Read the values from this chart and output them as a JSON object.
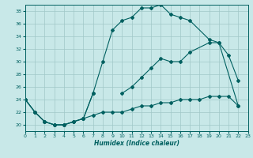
{
  "xlabel": "Humidex (Indice chaleur)",
  "xlim": [
    0,
    23
  ],
  "ylim": [
    19,
    39
  ],
  "yticks": [
    20,
    22,
    24,
    26,
    28,
    30,
    32,
    34,
    36,
    38
  ],
  "xticks": [
    0,
    1,
    2,
    3,
    4,
    5,
    6,
    7,
    8,
    9,
    10,
    11,
    12,
    13,
    14,
    15,
    16,
    17,
    18,
    19,
    20,
    21,
    22,
    23
  ],
  "bg_color": "#c8e8e8",
  "grid_color": "#a0c8c8",
  "line_color": "#006060",
  "line1_x": [
    0,
    1,
    2,
    3,
    4,
    5,
    6,
    7,
    8,
    9,
    10,
    11,
    12,
    13,
    14,
    15,
    16,
    17,
    18,
    19,
    20,
    21,
    22
  ],
  "line1_y": [
    24,
    22,
    20.5,
    20,
    20,
    20.5,
    21,
    21.5,
    22,
    22,
    22,
    22.5,
    23,
    23,
    23.5,
    23.5,
    24,
    24,
    24,
    24.5,
    24.5,
    24.5,
    23
  ],
  "line2_x": [
    0,
    1,
    2,
    3,
    4,
    5,
    6,
    7,
    8,
    9,
    10,
    11,
    12,
    13,
    14,
    15,
    16,
    17,
    19,
    20,
    21,
    22
  ],
  "line2_y": [
    24,
    22,
    20.5,
    20,
    20,
    20.5,
    21,
    25,
    30,
    35,
    36.5,
    37,
    38.5,
    38.5,
    39,
    37.5,
    37,
    36.5,
    33.5,
    33,
    31,
    27
  ],
  "line3_x": [
    0,
    1,
    2,
    3,
    4,
    5,
    6,
    7,
    10,
    11,
    12,
    13,
    14,
    15,
    16,
    17,
    19,
    20,
    22
  ],
  "line3_y": [
    24,
    22,
    20.5,
    20,
    20,
    20.5,
    21,
    25,
    25,
    26,
    27.5,
    29,
    30.5,
    30,
    30,
    31.5,
    33,
    33,
    23
  ]
}
